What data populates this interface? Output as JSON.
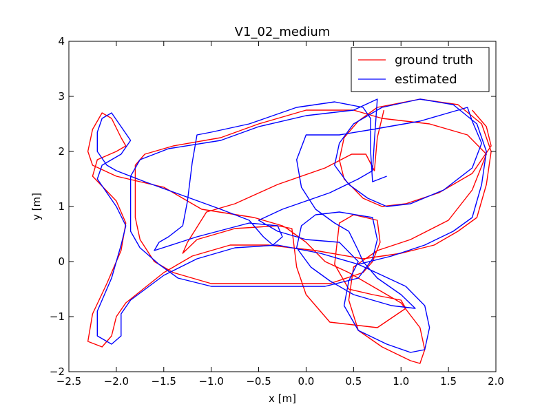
{
  "chart_data": {
    "type": "line",
    "title": "V1_02_medium",
    "xlabel": "x [m]",
    "ylabel": "y [m]",
    "xlim": [
      -2.5,
      2.0
    ],
    "ylim": [
      -2.0,
      4.0
    ],
    "xticks": [
      -2.5,
      -2.0,
      -1.5,
      -1.0,
      -0.5,
      0.0,
      0.5,
      1.0,
      1.5,
      2.0
    ],
    "xtick_labels": [
      "−2.5",
      "−2.0",
      "−1.5",
      "−1.0",
      "−0.5",
      "0.0",
      "0.5",
      "1.0",
      "1.5",
      "2.0"
    ],
    "yticks": [
      -2,
      -1,
      0,
      1,
      2,
      3,
      4
    ],
    "ytick_labels": [
      "−2",
      "−1",
      "0",
      "1",
      "2",
      "3",
      "4"
    ],
    "grid": false,
    "legend_position": "top-right",
    "series": [
      {
        "name": "ground truth",
        "color": "#ff0000",
        "points": [
          [
            0.82,
            2.75
          ],
          [
            0.75,
            2.25
          ],
          [
            0.72,
            1.65
          ],
          [
            0.63,
            1.95
          ],
          [
            0.48,
            1.95
          ],
          [
            0.2,
            1.7
          ],
          [
            -0.3,
            1.4
          ],
          [
            -0.75,
            1.05
          ],
          [
            -1.05,
            0.9
          ],
          [
            -1.25,
            0.35
          ],
          [
            -1.3,
            0.15
          ],
          [
            -1.15,
            0.4
          ],
          [
            -0.75,
            0.6
          ],
          [
            -0.3,
            0.65
          ],
          [
            -0.15,
            0.6
          ],
          [
            -0.1,
            -0.1
          ],
          [
            0.0,
            -0.6
          ],
          [
            0.25,
            -1.1
          ],
          [
            0.75,
            -1.2
          ],
          [
            1.05,
            -0.85
          ],
          [
            1.0,
            -0.7
          ],
          [
            0.7,
            -0.6
          ],
          [
            0.45,
            -0.5
          ],
          [
            0.3,
            -0.05
          ],
          [
            0.35,
            0.7
          ],
          [
            0.5,
            0.85
          ],
          [
            0.75,
            0.75
          ],
          [
            0.78,
            0.35
          ],
          [
            0.7,
            0.0
          ],
          [
            0.6,
            -0.2
          ],
          [
            0.25,
            -0.4
          ],
          [
            -0.3,
            -0.4
          ],
          [
            -1.0,
            -0.4
          ],
          [
            -1.4,
            -0.2
          ],
          [
            -1.6,
            0.0
          ],
          [
            -1.75,
            0.4
          ],
          [
            -1.8,
            0.8
          ],
          [
            -1.8,
            1.75
          ],
          [
            -1.7,
            1.95
          ],
          [
            -1.4,
            2.1
          ],
          [
            -0.9,
            2.25
          ],
          [
            -0.5,
            2.5
          ],
          [
            0.0,
            2.75
          ],
          [
            0.5,
            2.75
          ],
          [
            0.8,
            2.6
          ],
          [
            1.3,
            2.5
          ],
          [
            1.7,
            2.3
          ],
          [
            1.9,
            1.95
          ],
          [
            1.75,
            1.3
          ],
          [
            1.5,
            0.75
          ],
          [
            1.1,
            0.4
          ],
          [
            0.75,
            0.2
          ],
          [
            0.5,
            -0.1
          ],
          [
            0.45,
            -0.7
          ],
          [
            0.55,
            -1.25
          ],
          [
            0.8,
            -1.55
          ],
          [
            1.1,
            -1.8
          ],
          [
            1.2,
            -1.85
          ],
          [
            1.25,
            -1.6
          ],
          [
            1.2,
            -1.2
          ],
          [
            1.0,
            -0.75
          ],
          [
            0.7,
            -0.45
          ],
          [
            0.45,
            -0.2
          ],
          [
            0.2,
            0.0
          ],
          [
            0.0,
            0.35
          ],
          [
            -0.2,
            0.6
          ],
          [
            -0.25,
            0.65
          ],
          [
            -0.55,
            0.8
          ],
          [
            -1.1,
            0.95
          ],
          [
            -1.5,
            1.35
          ],
          [
            -2.0,
            1.55
          ],
          [
            -2.25,
            1.75
          ],
          [
            -2.3,
            2.0
          ],
          [
            -2.25,
            2.4
          ],
          [
            -2.15,
            2.7
          ],
          [
            -2.05,
            2.6
          ],
          [
            -1.95,
            2.25
          ],
          [
            -1.9,
            2.1
          ],
          [
            -2.0,
            2.0
          ],
          [
            -2.2,
            1.85
          ],
          [
            -2.25,
            1.55
          ],
          [
            -2.0,
            1.1
          ],
          [
            -1.9,
            0.7
          ],
          [
            -1.95,
            0.2
          ],
          [
            -2.1,
            -0.4
          ],
          [
            -2.25,
            -0.95
          ],
          [
            -2.3,
            -1.45
          ],
          [
            -2.15,
            -1.55
          ],
          [
            -2.05,
            -1.35
          ],
          [
            -2.0,
            -1.0
          ],
          [
            -1.9,
            -0.75
          ],
          [
            -1.5,
            -0.2
          ],
          [
            -1.2,
            0.1
          ],
          [
            -0.8,
            0.3
          ],
          [
            -0.4,
            0.3
          ],
          [
            0.1,
            0.2
          ],
          [
            0.6,
            0.05
          ],
          [
            1.0,
            0.15
          ],
          [
            1.35,
            0.3
          ],
          [
            1.6,
            0.55
          ],
          [
            1.8,
            0.8
          ],
          [
            1.9,
            1.4
          ],
          [
            1.95,
            2.0
          ],
          [
            1.85,
            2.5
          ],
          [
            1.6,
            2.85
          ],
          [
            1.2,
            2.95
          ],
          [
            0.75,
            2.8
          ],
          [
            0.55,
            2.55
          ],
          [
            0.4,
            2.25
          ],
          [
            0.35,
            1.85
          ],
          [
            0.4,
            1.5
          ],
          [
            0.6,
            1.15
          ],
          [
            0.8,
            1.0
          ],
          [
            1.05,
            1.05
          ],
          [
            1.4,
            1.25
          ],
          [
            1.75,
            1.6
          ],
          [
            1.95,
            2.1
          ],
          [
            1.9,
            2.45
          ],
          [
            1.75,
            2.75
          ]
        ]
      },
      {
        "name": "estimated",
        "color": "#0000ff",
        "points": [
          [
            0.85,
            1.55
          ],
          [
            0.7,
            1.45
          ],
          [
            0.68,
            2.0
          ],
          [
            0.68,
            2.6
          ],
          [
            0.6,
            2.8
          ],
          [
            0.3,
            2.9
          ],
          [
            -0.1,
            2.8
          ],
          [
            -0.6,
            2.5
          ],
          [
            -1.0,
            2.35
          ],
          [
            -1.15,
            2.3
          ],
          [
            -1.2,
            1.8
          ],
          [
            -1.25,
            1.1
          ],
          [
            -1.3,
            0.65
          ],
          [
            -1.45,
            0.45
          ],
          [
            -1.55,
            0.35
          ],
          [
            -1.6,
            0.2
          ],
          [
            -1.15,
            0.45
          ],
          [
            -0.6,
            0.7
          ],
          [
            -0.3,
            0.65
          ],
          [
            -0.25,
            0.45
          ],
          [
            -0.35,
            0.3
          ],
          [
            -0.45,
            0.45
          ],
          [
            -0.6,
            0.75
          ],
          [
            -0.9,
            0.95
          ],
          [
            -1.3,
            1.2
          ],
          [
            -1.7,
            1.45
          ],
          [
            -2.0,
            1.65
          ],
          [
            -2.1,
            1.75
          ],
          [
            -2.2,
            2.0
          ],
          [
            -2.2,
            2.35
          ],
          [
            -2.15,
            2.6
          ],
          [
            -2.05,
            2.7
          ],
          [
            -1.95,
            2.45
          ],
          [
            -1.85,
            2.2
          ],
          [
            -1.95,
            1.95
          ],
          [
            -2.15,
            1.75
          ],
          [
            -2.2,
            1.5
          ],
          [
            -2.0,
            1.0
          ],
          [
            -1.9,
            0.65
          ],
          [
            -1.95,
            0.3
          ],
          [
            -2.05,
            -0.3
          ],
          [
            -2.2,
            -0.9
          ],
          [
            -2.2,
            -1.35
          ],
          [
            -2.05,
            -1.5
          ],
          [
            -1.95,
            -1.35
          ],
          [
            -1.95,
            -0.95
          ],
          [
            -1.85,
            -0.7
          ],
          [
            -1.5,
            -0.25
          ],
          [
            -1.15,
            0.05
          ],
          [
            -0.75,
            0.25
          ],
          [
            -0.3,
            0.3
          ],
          [
            0.15,
            0.15
          ],
          [
            0.55,
            -0.05
          ],
          [
            0.9,
            0.1
          ],
          [
            1.25,
            0.3
          ],
          [
            1.55,
            0.55
          ],
          [
            1.75,
            0.8
          ],
          [
            1.85,
            1.4
          ],
          [
            1.9,
            2.0
          ],
          [
            1.8,
            2.5
          ],
          [
            1.55,
            2.85
          ],
          [
            1.2,
            2.95
          ],
          [
            0.8,
            2.8
          ],
          [
            0.5,
            2.5
          ],
          [
            0.35,
            2.15
          ],
          [
            0.3,
            1.75
          ],
          [
            0.45,
            1.4
          ],
          [
            0.65,
            1.15
          ],
          [
            0.85,
            1.0
          ],
          [
            1.1,
            1.05
          ],
          [
            1.45,
            1.3
          ],
          [
            1.75,
            1.7
          ],
          [
            1.85,
            2.15
          ],
          [
            1.75,
            2.55
          ],
          [
            1.7,
            2.8
          ],
          [
            1.2,
            2.55
          ],
          [
            0.7,
            2.4
          ],
          [
            0.35,
            2.3
          ],
          [
            0.0,
            2.3
          ],
          [
            -0.1,
            1.85
          ],
          [
            -0.05,
            1.35
          ],
          [
            0.1,
            0.95
          ],
          [
            0.3,
            0.7
          ],
          [
            0.45,
            0.55
          ],
          [
            0.55,
            0.2
          ],
          [
            0.6,
            0.0
          ],
          [
            0.75,
            -0.3
          ],
          [
            1.0,
            -0.6
          ],
          [
            1.15,
            -0.85
          ],
          [
            0.9,
            -0.8
          ],
          [
            0.5,
            -0.6
          ],
          [
            0.25,
            -0.35
          ],
          [
            0.05,
            -0.1
          ],
          [
            -0.1,
            0.25
          ],
          [
            -0.05,
            0.65
          ],
          [
            0.1,
            0.85
          ],
          [
            0.35,
            0.9
          ],
          [
            0.7,
            0.8
          ],
          [
            0.75,
            0.4
          ],
          [
            0.7,
            0.05
          ],
          [
            0.55,
            -0.3
          ],
          [
            0.2,
            -0.45
          ],
          [
            -0.3,
            -0.45
          ],
          [
            -1.0,
            -0.45
          ],
          [
            -1.35,
            -0.3
          ],
          [
            -1.55,
            -0.05
          ],
          [
            -1.75,
            0.25
          ],
          [
            -1.85,
            0.55
          ],
          [
            -1.85,
            1.0
          ],
          [
            -1.85,
            1.55
          ],
          [
            -1.75,
            1.85
          ],
          [
            -1.45,
            2.05
          ],
          [
            -0.9,
            2.2
          ],
          [
            -0.5,
            2.45
          ],
          [
            0.0,
            2.65
          ],
          [
            0.5,
            2.75
          ],
          [
            0.75,
            2.95
          ],
          [
            0.72,
            2.2
          ],
          [
            0.7,
            1.65
          ],
          [
            0.55,
            1.5
          ],
          [
            0.25,
            1.25
          ],
          [
            -0.25,
            0.95
          ],
          [
            -0.5,
            0.75
          ],
          [
            -0.3,
            0.55
          ],
          [
            0.0,
            0.4
          ],
          [
            0.35,
            0.35
          ],
          [
            0.55,
            0.0
          ],
          [
            0.45,
            -0.35
          ],
          [
            0.4,
            -0.8
          ],
          [
            0.55,
            -1.25
          ],
          [
            0.85,
            -1.5
          ],
          [
            1.1,
            -1.65
          ],
          [
            1.25,
            -1.6
          ],
          [
            1.3,
            -1.2
          ],
          [
            1.25,
            -0.8
          ],
          [
            1.05,
            -0.45
          ],
          [
            0.8,
            -0.25
          ],
          [
            0.55,
            -0.05
          ]
        ]
      }
    ]
  }
}
